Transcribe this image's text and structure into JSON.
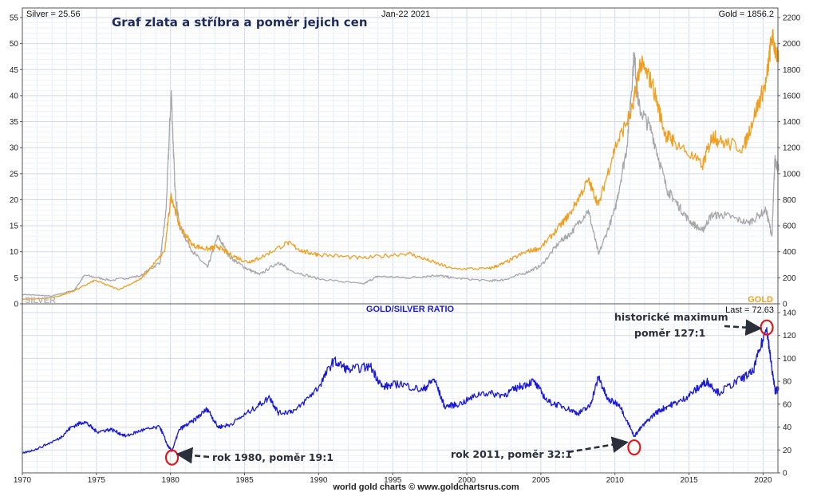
{
  "chart_data": [
    {
      "type": "line",
      "title": "Graf zlata a stříbra a poměr jejich cen",
      "header": {
        "left": "Silver = 25.56",
        "center": "Jan-22  2021",
        "right": "Gold = 1856.2"
      },
      "xlim": [
        1970,
        2021
      ],
      "x_ticks": [
        "1970",
        "1975",
        "1980",
        "1985",
        "1990",
        "1995",
        "2000",
        "2005",
        "2010",
        "2015",
        "2020"
      ],
      "y_left": {
        "lim": [
          0,
          55
        ],
        "ticks": [
          "0",
          "5",
          "10",
          "15",
          "20",
          "25",
          "30",
          "35",
          "40",
          "45",
          "50",
          "55"
        ]
      },
      "y_right": {
        "lim": [
          0,
          2200
        ],
        "ticks": [
          "0",
          "200",
          "400",
          "600",
          "800",
          "1000",
          "1200",
          "1400",
          "1600",
          "1800",
          "2000",
          "2200"
        ]
      },
      "grid": true,
      "series": [
        {
          "name": "SILVER",
          "axis": "left",
          "color": "#a8a8a8",
          "x": [
            1970,
            1972,
            1973.5,
            1974.2,
            1976,
            1978,
            1979.3,
            1979.7,
            1980.05,
            1980.3,
            1980.6,
            1981.5,
            1982.5,
            1983.2,
            1984,
            1985,
            1986,
            1987.3,
            1988,
            1990,
            1993,
            1994,
            1996,
            1998,
            1999,
            2001.5,
            2002.5,
            2004,
            2005,
            2006.3,
            2007,
            2008.2,
            2008.9,
            2010,
            2010.8,
            2011.3,
            2011.6,
            2012.5,
            2013.5,
            2014,
            2015,
            2015.9,
            2016.5,
            2017.5,
            2019,
            2020.2,
            2020.6,
            2020.8,
            2021.05
          ],
          "y": [
            1.8,
            1.5,
            2.6,
            5.5,
            4.5,
            5.4,
            8,
            18,
            41,
            22,
            15,
            10,
            7,
            13,
            9,
            7,
            5.6,
            8,
            6.5,
            4.8,
            3.8,
            5.3,
            5,
            5.5,
            5,
            4.4,
            4.6,
            6,
            7.3,
            12,
            13.5,
            18,
            9.5,
            18,
            30,
            48,
            38,
            33,
            22,
            20,
            16,
            14,
            17,
            17,
            15.5,
            18,
            13,
            28,
            25.56
          ]
        },
        {
          "name": "GOLD",
          "axis": "right",
          "color": "#f0a020",
          "x": [
            1970,
            1971.5,
            1972.5,
            1973.5,
            1974.9,
            1976.5,
            1978,
            1979.6,
            1980.05,
            1980.6,
            1981.5,
            1982.5,
            1983.2,
            1984,
            1985.2,
            1986,
            1987.9,
            1989,
            1990,
            1993,
            1996,
            1997.5,
            1999,
            2001.5,
            2002.5,
            2004,
            2005,
            2006.3,
            2007,
            2008.2,
            2008.9,
            2010,
            2011.2,
            2011.7,
            2012.5,
            2013.4,
            2014,
            2015.9,
            2016.6,
            2017,
            2018.7,
            2019.5,
            2020.2,
            2020.6,
            2021.05
          ],
          "y": [
            35,
            40,
            60,
            100,
            180,
            110,
            190,
            400,
            840,
            600,
            450,
            420,
            440,
            380,
            320,
            350,
            470,
            400,
            380,
            350,
            390,
            330,
            270,
            270,
            310,
            400,
            430,
            600,
            700,
            950,
            760,
            1200,
            1500,
            1850,
            1700,
            1300,
            1250,
            1060,
            1300,
            1250,
            1200,
            1480,
            1700,
            2060,
            1856.2
          ]
        }
      ],
      "legend": {
        "silver": "SILVER",
        "gold": "GOLD"
      }
    },
    {
      "type": "line",
      "title": "GOLD/SILVER RATIO",
      "last": "Last = 72.63",
      "xlim": [
        1970,
        2021
      ],
      "ylim": [
        0,
        140
      ],
      "y_ticks": [
        "0",
        "20",
        "40",
        "60",
        "80",
        "100",
        "120",
        "140"
      ],
      "series": [
        {
          "name": "GOLD/SILVER RATIO",
          "color": "#1a1ad6",
          "x": [
            1970,
            1971,
            1972.5,
            1973.3,
            1974.2,
            1975,
            1976,
            1977,
            1978,
            1979.3,
            1979.8,
            1980.1,
            1980.6,
            1981.5,
            1982.5,
            1983.2,
            1984,
            1985.5,
            1986.7,
            1987.3,
            1988.5,
            1990,
            1991,
            1992,
            1993.5,
            1994.3,
            1995.5,
            1997,
            1997.8,
            1998.5,
            1999.5,
            2001,
            2002.5,
            2003.5,
            2004.5,
            2005.5,
            2006.5,
            2007.5,
            2008.3,
            2008.9,
            2009.5,
            2010.3,
            2011.3,
            2011.8,
            2012.7,
            2013.5,
            2014.5,
            2015.5,
            2016.2,
            2017,
            2018.5,
            2019.3,
            2020.25,
            2020.5,
            2020.8,
            2021.05
          ],
          "y": [
            17,
            21,
            30,
            40,
            45,
            36,
            38,
            32,
            37,
            40,
            24,
            19,
            38,
            45,
            56,
            40,
            42,
            55,
            66,
            52,
            55,
            75,
            98,
            90,
            93,
            75,
            78,
            72,
            82,
            58,
            60,
            70,
            68,
            75,
            80,
            62,
            58,
            52,
            58,
            84,
            64,
            60,
            32,
            40,
            52,
            58,
            63,
            73,
            80,
            70,
            82,
            88,
            127,
            100,
            72,
            72.63
          ]
        }
      ],
      "annotations": [
        {
          "text": "historické maximum",
          "x": 2020.25,
          "y": 127
        },
        {
          "text": "poměr 127:1",
          "x": 2020.25,
          "y": 127
        },
        {
          "text": "rok 1980, poměr 19:1",
          "x": 1980.1,
          "y": 19
        },
        {
          "text": "rok 2011, poměr 32:1",
          "x": 2011.3,
          "y": 32
        }
      ]
    }
  ],
  "footer": "world gold charts © www.goldchartsrus.com"
}
